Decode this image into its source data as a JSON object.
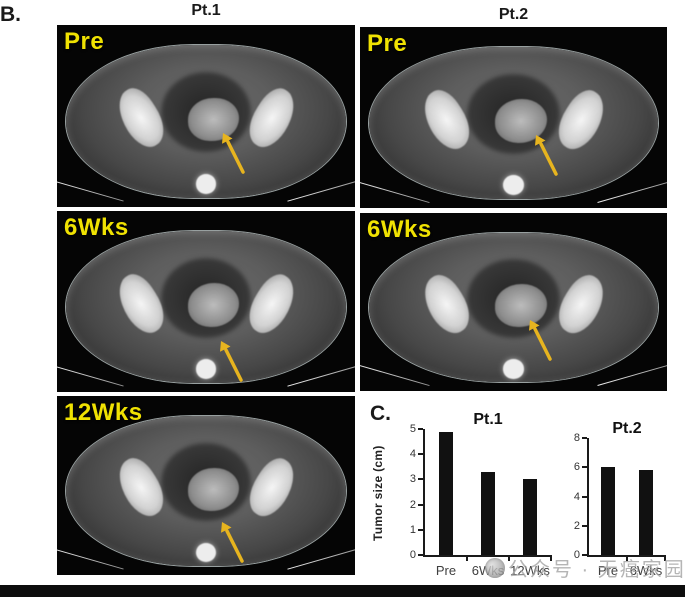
{
  "figure": {
    "label_b": "B.",
    "label_c": "C.",
    "column_titles": [
      "Pt.1",
      "Pt.2"
    ],
    "scans": [
      {
        "patient": "Pt.1",
        "timepoint": "Pre"
      },
      {
        "patient": "Pt.2",
        "timepoint": "Pre"
      },
      {
        "patient": "Pt.1",
        "timepoint": "6Wks"
      },
      {
        "patient": "Pt.2",
        "timepoint": "6Wks"
      },
      {
        "patient": "Pt.1",
        "timepoint": "12Wks"
      }
    ],
    "annotation_label_color": "#f0e202",
    "arrow_color": "#e7b41f"
  },
  "chart_data": [
    {
      "type": "bar",
      "title": "Pt.1",
      "categories": [
        "Pre",
        "6Wks",
        "12Wks"
      ],
      "values": [
        4.9,
        3.3,
        3.0
      ],
      "ylabel": "Tumor size (cm)",
      "ylim": [
        0,
        5
      ],
      "yticks": [
        0,
        1,
        2,
        3,
        4,
        5
      ],
      "bar_color": "#111111",
      "grid": false,
      "legend": false
    },
    {
      "type": "bar",
      "title": "Pt.2",
      "categories": [
        "Pre",
        "6Wks"
      ],
      "values": [
        6.0,
        5.8
      ],
      "ylabel": "",
      "ylim": [
        0,
        8
      ],
      "yticks": [
        0,
        2,
        4,
        6,
        8
      ],
      "bar_color": "#111111",
      "grid": false,
      "legend": false
    }
  ],
  "watermark": {
    "text": "公众号 · 无癌家园"
  }
}
